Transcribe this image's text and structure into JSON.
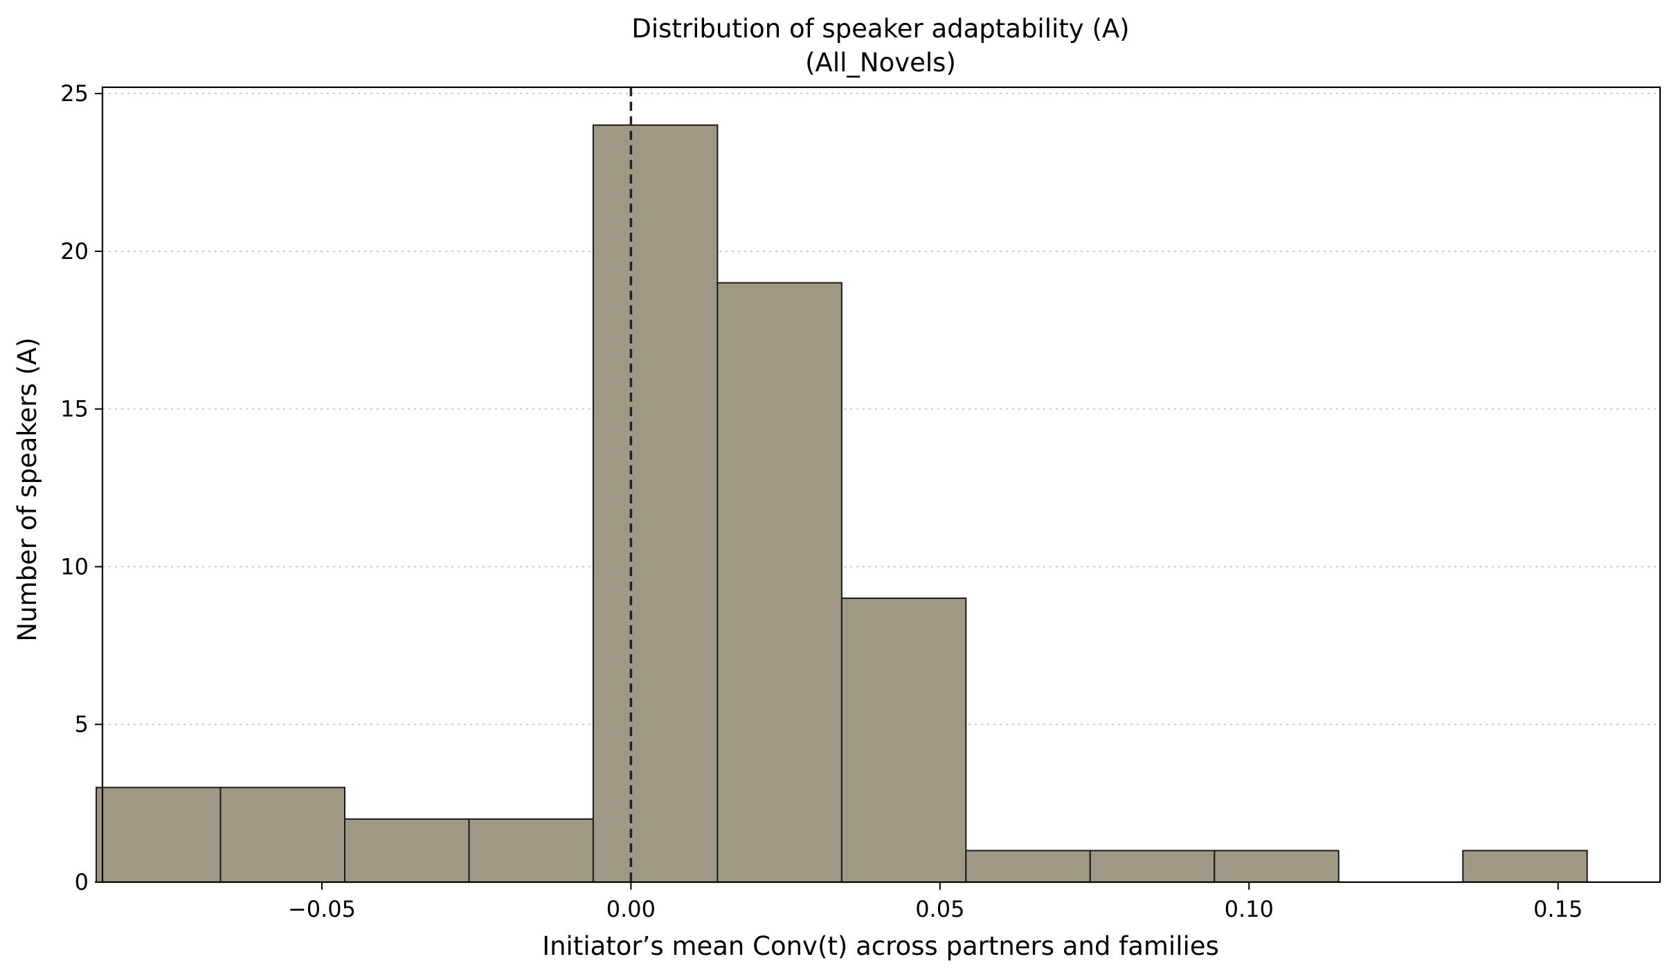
{
  "chart_data": {
    "type": "bar",
    "subtype": "histogram",
    "title": "Distribution of speaker adaptability (A)",
    "subtitle": "(All_Novels)",
    "xlabel": "Initiator’s mean Conv(t) across partners and families",
    "ylabel": "Number of speakers (A)",
    "xlim": [
      -0.0855,
      0.1665
    ],
    "ylim": [
      0,
      25.2
    ],
    "xticks": [
      -0.05,
      0.0,
      0.05,
      0.1,
      0.15
    ],
    "xtick_labels": [
      "−0.05",
      "0.00",
      "0.05",
      "0.10",
      "0.15"
    ],
    "yticks": [
      0,
      5,
      10,
      15,
      20,
      25
    ],
    "ytick_labels": [
      "0",
      "5",
      "10",
      "15",
      "20",
      "25"
    ],
    "bins": [
      {
        "x0": -0.0865,
        "x1": -0.0664,
        "count": 3
      },
      {
        "x0": -0.0664,
        "x1": -0.0463,
        "count": 3
      },
      {
        "x0": -0.0463,
        "x1": -0.0262,
        "count": 2
      },
      {
        "x0": -0.0262,
        "x1": -0.0061,
        "count": 2
      },
      {
        "x0": -0.0061,
        "x1": 0.014,
        "count": 24
      },
      {
        "x0": 0.014,
        "x1": 0.0341,
        "count": 19
      },
      {
        "x0": 0.0341,
        "x1": 0.0542,
        "count": 9
      },
      {
        "x0": 0.0542,
        "x1": 0.0743,
        "count": 1
      },
      {
        "x0": 0.0743,
        "x1": 0.0944,
        "count": 1
      },
      {
        "x0": 0.0944,
        "x1": 0.1145,
        "count": 1
      },
      {
        "x0": 0.1145,
        "x1": 0.1346,
        "count": 0
      },
      {
        "x0": 0.1346,
        "x1": 0.1547,
        "count": 1
      }
    ],
    "reference_line": {
      "x": 0.0,
      "style": "dashed",
      "color": "#222222"
    },
    "grid": {
      "axis": "y",
      "style": "dotted",
      "color": "#c8c8c8"
    },
    "bar_color": "#9e9884",
    "bar_edge_color": "#1a1a1a"
  }
}
